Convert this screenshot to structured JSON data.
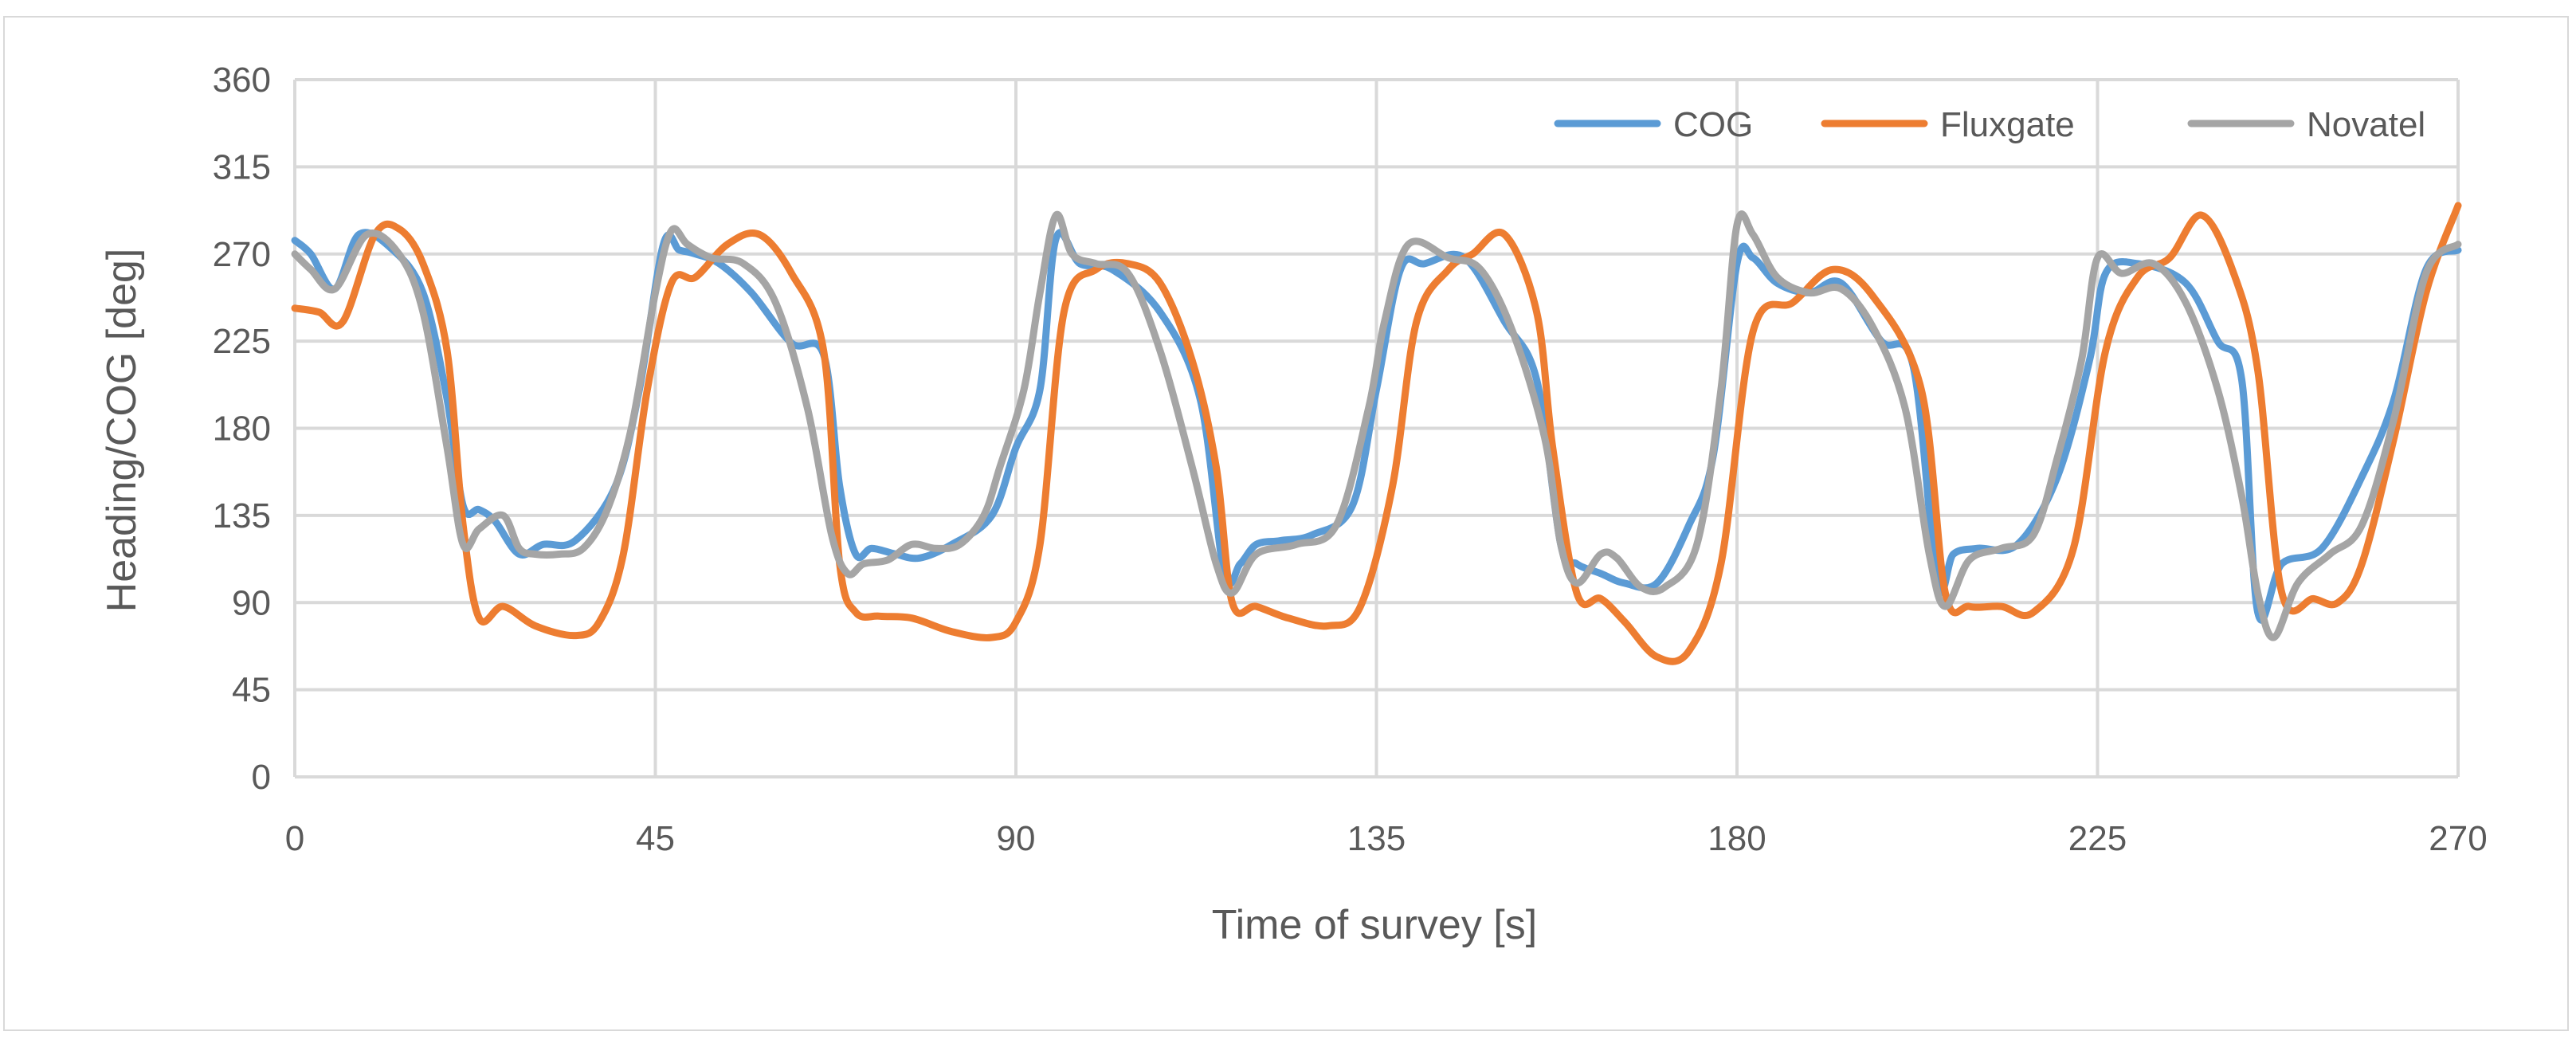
{
  "chart_data": {
    "type": "line",
    "title": "",
    "xlabel": "Time of survey [s]",
    "ylabel": "Heading/COG [deg]",
    "xlim": [
      0,
      270
    ],
    "ylim": [
      0,
      360
    ],
    "xticks": [
      "0",
      "45",
      "90",
      "135",
      "180",
      "225",
      "270"
    ],
    "yticks": [
      "0",
      "45",
      "90",
      "135",
      "180",
      "225",
      "270",
      "315",
      "360"
    ],
    "grid": true,
    "legend_position": "top-right",
    "series": [
      {
        "name": "COG",
        "color": "#5b9bd5",
        "x": [
          0,
          2,
          5,
          8,
          12,
          16,
          19,
          21,
          23,
          25,
          28,
          31,
          35,
          40,
          43,
          46,
          48,
          50,
          53,
          57,
          62,
          66,
          68,
          70,
          72,
          75,
          78,
          82,
          87,
          90,
          93,
          95,
          98,
          102,
          108,
          113,
          116,
          118,
          120,
          123,
          127,
          132,
          135,
          138,
          141,
          146,
          151,
          155,
          158,
          160,
          163,
          166,
          170,
          174,
          177,
          180,
          182,
          185,
          189,
          193,
          198,
          202,
          205,
          207,
          210,
          215,
          220,
          224,
          226,
          230,
          236,
          240,
          243,
          245,
          248,
          253,
          258,
          262,
          266,
          270
        ],
        "y": [
          277,
          270,
          252,
          280,
          273,
          250,
          195,
          140,
          138,
          132,
          115,
          120,
          122,
          150,
          200,
          275,
          272,
          270,
          265,
          250,
          224,
          218,
          150,
          115,
          118,
          115,
          113,
          120,
          135,
          170,
          200,
          278,
          265,
          262,
          240,
          195,
          105,
          110,
          120,
          122,
          125,
          140,
          200,
          262,
          265,
          268,
          235,
          205,
          120,
          110,
          105,
          100,
          100,
          130,
          165,
          265,
          268,
          255,
          250,
          255,
          225,
          212,
          100,
          115,
          118,
          120,
          155,
          215,
          260,
          265,
          255,
          225,
          205,
          85,
          110,
          118,
          155,
          195,
          262,
          272
        ]
      },
      {
        "name": "Fluxgate",
        "color": "#ed7d31",
        "x": [
          0,
          3,
          6,
          10,
          13,
          16,
          19,
          21,
          23,
          26,
          30,
          35,
          38,
          41,
          44,
          47,
          50,
          54,
          58,
          62,
          66,
          68,
          70,
          73,
          77,
          82,
          87,
          90,
          93,
          96,
          100,
          104,
          108,
          112,
          115,
          117,
          120,
          124,
          129,
          133,
          137,
          140,
          144,
          147,
          151,
          155,
          157,
          160,
          163,
          166,
          170,
          174,
          178,
          182,
          187,
          192,
          197,
          203,
          206,
          209,
          213,
          217,
          222,
          226,
          230,
          234,
          238,
          242,
          245,
          248,
          252,
          255,
          258,
          262,
          266,
          270
        ],
        "y": [
          242,
          240,
          235,
          280,
          283,
          265,
          220,
          130,
          82,
          88,
          78,
          73,
          80,
          115,
          200,
          255,
          258,
          275,
          280,
          260,
          220,
          110,
          85,
          83,
          82,
          75,
          72,
          80,
          120,
          240,
          262,
          265,
          255,
          215,
          160,
          90,
          88,
          82,
          78,
          88,
          150,
          235,
          262,
          270,
          280,
          240,
          170,
          95,
          92,
          80,
          62,
          65,
          110,
          230,
          245,
          262,
          248,
          200,
          95,
          88,
          88,
          85,
          118,
          220,
          258,
          268,
          290,
          260,
          210,
          95,
          92,
          90,
          110,
          175,
          250,
          295
        ]
      },
      {
        "name": "Novatel",
        "color": "#a5a5a5",
        "x": [
          0,
          2,
          5,
          9,
          13,
          16,
          19,
          21,
          23,
          26,
          28,
          30,
          33,
          36,
          39,
          42,
          45,
          47,
          49,
          52,
          56,
          60,
          64,
          67,
          69,
          71,
          74,
          77,
          80,
          83,
          86,
          88,
          91,
          93,
          95,
          97,
          100,
          104,
          108,
          112,
          115,
          117,
          120,
          125,
          130,
          134,
          136,
          139,
          144,
          148,
          152,
          156,
          158,
          160,
          163,
          165,
          168,
          171,
          175,
          178,
          180,
          182,
          185,
          189,
          193,
          197,
          201,
          204,
          206,
          209,
          213,
          217,
          220,
          223,
          225,
          228,
          232,
          236,
          240,
          243,
          245,
          247,
          250,
          254,
          258,
          262,
          266,
          270
        ],
        "y": [
          270,
          262,
          252,
          280,
          270,
          240,
          170,
          120,
          128,
          135,
          118,
          115,
          115,
          118,
          138,
          180,
          250,
          282,
          275,
          268,
          265,
          245,
          190,
          125,
          105,
          110,
          112,
          120,
          118,
          120,
          135,
          160,
          200,
          250,
          290,
          270,
          265,
          260,
          220,
          160,
          110,
          95,
          115,
          120,
          130,
          190,
          235,
          275,
          268,
          262,
          230,
          175,
          120,
          100,
          115,
          113,
          98,
          98,
          120,
          200,
          285,
          280,
          258,
          250,
          252,
          232,
          190,
          115,
          88,
          112,
          118,
          125,
          165,
          215,
          268,
          260,
          265,
          245,
          200,
          145,
          95,
          72,
          100,
          115,
          130,
          185,
          260,
          275
        ]
      }
    ]
  }
}
